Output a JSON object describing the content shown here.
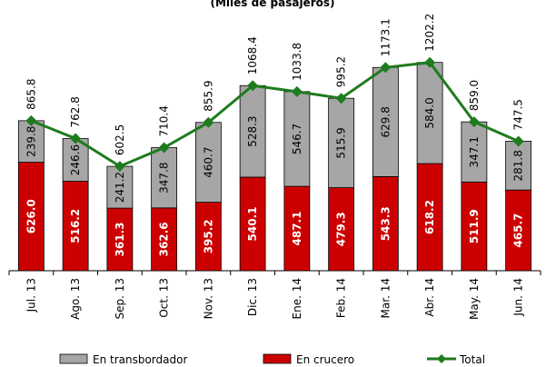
{
  "chart_data": {
    "type": "stacked-bar-line",
    "title": "(Miles de pasajeros)",
    "categories": [
      "Jul. 13",
      "Ago. 13",
      "Sep. 13",
      "Oct. 13",
      "Nov. 13",
      "Dic. 13",
      "Ene. 14",
      "Feb. 14",
      "Mar. 14",
      "Abr. 14",
      "May. 14",
      "Jun. 14"
    ],
    "series": [
      {
        "name": "En crucero",
        "color": "#cc0000",
        "kind": "bar",
        "values": [
          626.0,
          516.2,
          361.3,
          362.6,
          395.2,
          540.1,
          487.1,
          479.3,
          543.3,
          618.2,
          511.9,
          465.7
        ],
        "value_labels": [
          "626.0",
          "516.2",
          "361.3",
          "362.6",
          "395.2",
          "540.1",
          "487.1",
          "479.3",
          "543.3",
          "618.2",
          "511.9",
          "465.7"
        ]
      },
      {
        "name": "En transbordador",
        "color": "#a6a6a6",
        "kind": "bar",
        "values": [
          239.8,
          246.6,
          241.2,
          347.8,
          460.7,
          528.3,
          546.7,
          515.9,
          629.8,
          584.0,
          347.1,
          281.8
        ],
        "value_labels": [
          "239.8",
          "246.6",
          "241.2",
          "347.8",
          "460.7",
          "528.3",
          "546.7",
          "515.9",
          "629.8",
          "584.0",
          "347.1",
          "281.8"
        ]
      },
      {
        "name": "Total",
        "color": "#1e7b1e",
        "kind": "line",
        "values": [
          865.8,
          762.8,
          602.5,
          710.4,
          855.9,
          1068.4,
          1033.8,
          995.2,
          1173.1,
          1202.2,
          859.0,
          747.5
        ],
        "value_labels": [
          "865.8",
          "762.8",
          "602.5",
          "710.4",
          "855.9",
          "1068.4",
          "1033.8",
          "995.2",
          "1173.1",
          "1202.2",
          "859.0",
          "747.5"
        ]
      }
    ],
    "ylim": [
      0,
      1400
    ]
  }
}
